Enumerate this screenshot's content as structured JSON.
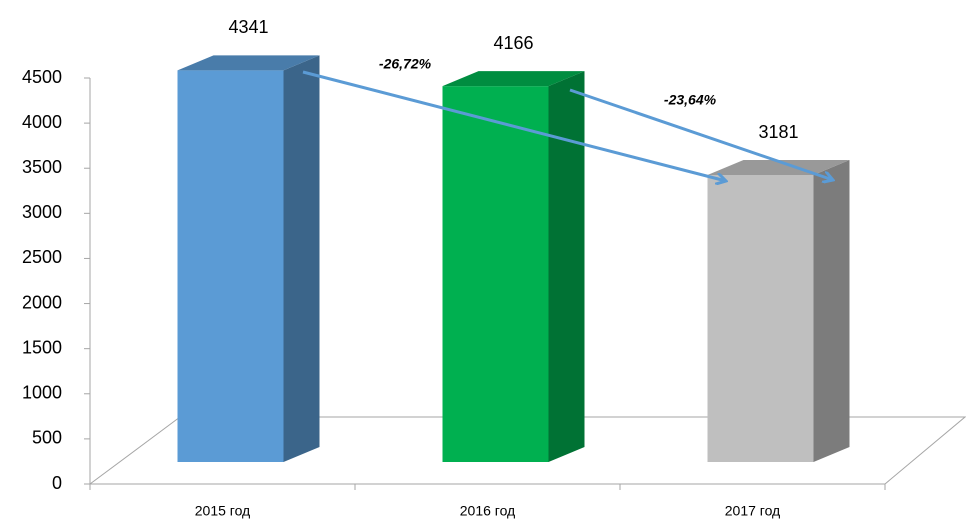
{
  "chart_data": {
    "type": "bar3d",
    "categories": [
      "2015 год",
      "2016 год",
      "2017 год"
    ],
    "values": [
      4341,
      4166,
      3181
    ],
    "colors": [
      "#5b9bd5",
      "#00b050",
      "#bfbfbf"
    ],
    "ylim": [
      0,
      4500
    ],
    "yticks": [
      0,
      500,
      1000,
      1500,
      2000,
      2500,
      3000,
      3500,
      4000,
      4500
    ],
    "annotations": [
      "-26,72%",
      "-23,64%"
    ]
  }
}
